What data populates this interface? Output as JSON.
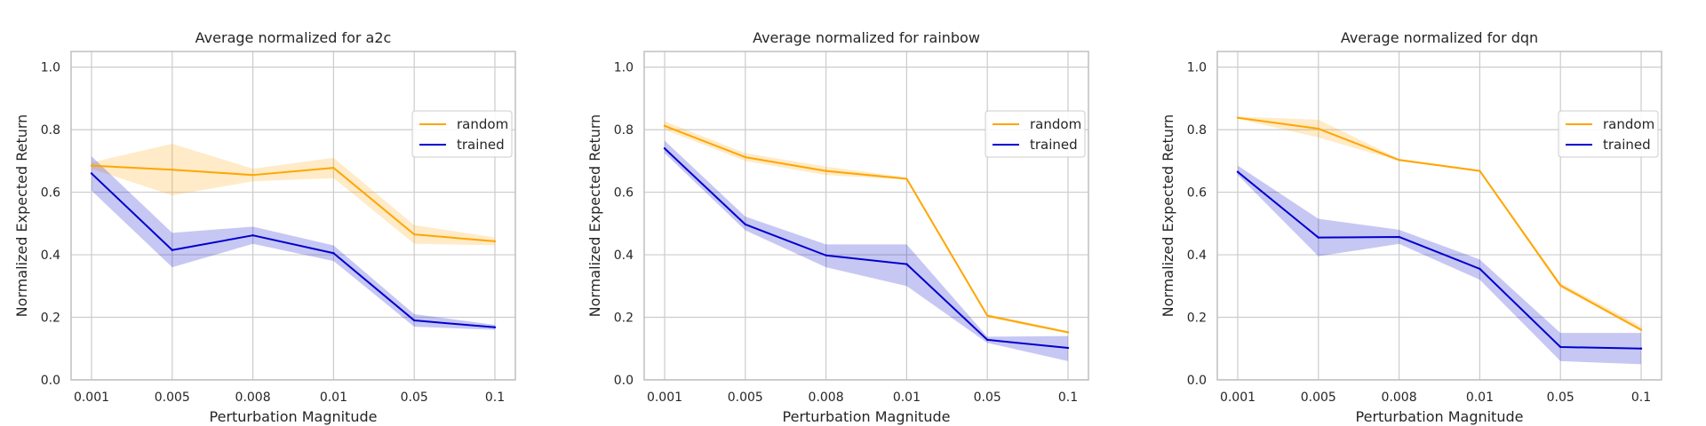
{
  "chart_data": [
    {
      "type": "line",
      "title": "Average normalized for a2c",
      "xlabel": "Perturbation Magnitude",
      "ylabel": "Normalized Expected Return",
      "categories": [
        "0.001",
        "0.005",
        "0.008",
        "0.01",
        "0.05",
        "0.1"
      ],
      "yticks": [
        "0.0",
        "0.2",
        "0.4",
        "0.6",
        "0.8",
        "1.0"
      ],
      "ylim": [
        0.0,
        1.05
      ],
      "grid": true,
      "legend_position": "right",
      "series": [
        {
          "name": "random",
          "color": "#ffa500",
          "values": [
            0.685,
            0.672,
            0.655,
            0.678,
            0.465,
            0.443
          ],
          "lower": [
            0.675,
            0.59,
            0.635,
            0.645,
            0.435,
            0.43
          ],
          "upper": [
            0.695,
            0.755,
            0.675,
            0.71,
            0.495,
            0.455
          ]
        },
        {
          "name": "trained",
          "color": "#0000cd",
          "values": [
            0.66,
            0.415,
            0.462,
            0.405,
            0.19,
            0.168
          ],
          "lower": [
            0.605,
            0.36,
            0.435,
            0.38,
            0.17,
            0.16
          ],
          "upper": [
            0.715,
            0.47,
            0.49,
            0.43,
            0.21,
            0.176
          ]
        }
      ]
    },
    {
      "type": "line",
      "title": "Average normalized for rainbow",
      "xlabel": "Perturbation Magnitude",
      "ylabel": "Normalized Expected Return",
      "categories": [
        "0.001",
        "0.005",
        "0.008",
        "0.01",
        "0.05",
        "0.1"
      ],
      "yticks": [
        "0.0",
        "0.2",
        "0.4",
        "0.6",
        "0.8",
        "1.0"
      ],
      "ylim": [
        0.0,
        1.05
      ],
      "grid": true,
      "legend_position": "right",
      "series": [
        {
          "name": "random",
          "color": "#ffa500",
          "values": [
            0.812,
            0.712,
            0.668,
            0.643,
            0.205,
            0.152
          ],
          "lower": [
            0.8,
            0.7,
            0.655,
            0.64,
            0.2,
            0.148
          ],
          "upper": [
            0.827,
            0.725,
            0.682,
            0.647,
            0.21,
            0.156
          ]
        },
        {
          "name": "trained",
          "color": "#0000cd",
          "values": [
            0.74,
            0.497,
            0.398,
            0.37,
            0.128,
            0.102
          ],
          "lower": [
            0.725,
            0.478,
            0.36,
            0.3,
            0.118,
            0.06
          ],
          "upper": [
            0.765,
            0.522,
            0.433,
            0.433,
            0.138,
            0.14
          ]
        }
      ]
    },
    {
      "type": "line",
      "title": "Average normalized for dqn",
      "xlabel": "Perturbation Magnitude",
      "ylabel": "Normalized Expected Return",
      "categories": [
        "0.001",
        "0.005",
        "0.008",
        "0.01",
        "0.05",
        "0.1"
      ],
      "yticks": [
        "0.0",
        "0.2",
        "0.4",
        "0.6",
        "0.8",
        "1.0"
      ],
      "ylim": [
        0.0,
        1.05
      ],
      "grid": true,
      "legend_position": "right",
      "series": [
        {
          "name": "random",
          "color": "#ffa500",
          "values": [
            0.838,
            0.803,
            0.703,
            0.668,
            0.302,
            0.16
          ],
          "lower": [
            0.835,
            0.775,
            0.7,
            0.665,
            0.295,
            0.155
          ],
          "upper": [
            0.842,
            0.832,
            0.707,
            0.672,
            0.31,
            0.172
          ]
        },
        {
          "name": "trained",
          "color": "#0000cd",
          "values": [
            0.665,
            0.455,
            0.457,
            0.355,
            0.105,
            0.1
          ],
          "lower": [
            0.655,
            0.395,
            0.435,
            0.32,
            0.06,
            0.05
          ],
          "upper": [
            0.685,
            0.515,
            0.48,
            0.385,
            0.15,
            0.15
          ]
        }
      ]
    }
  ]
}
